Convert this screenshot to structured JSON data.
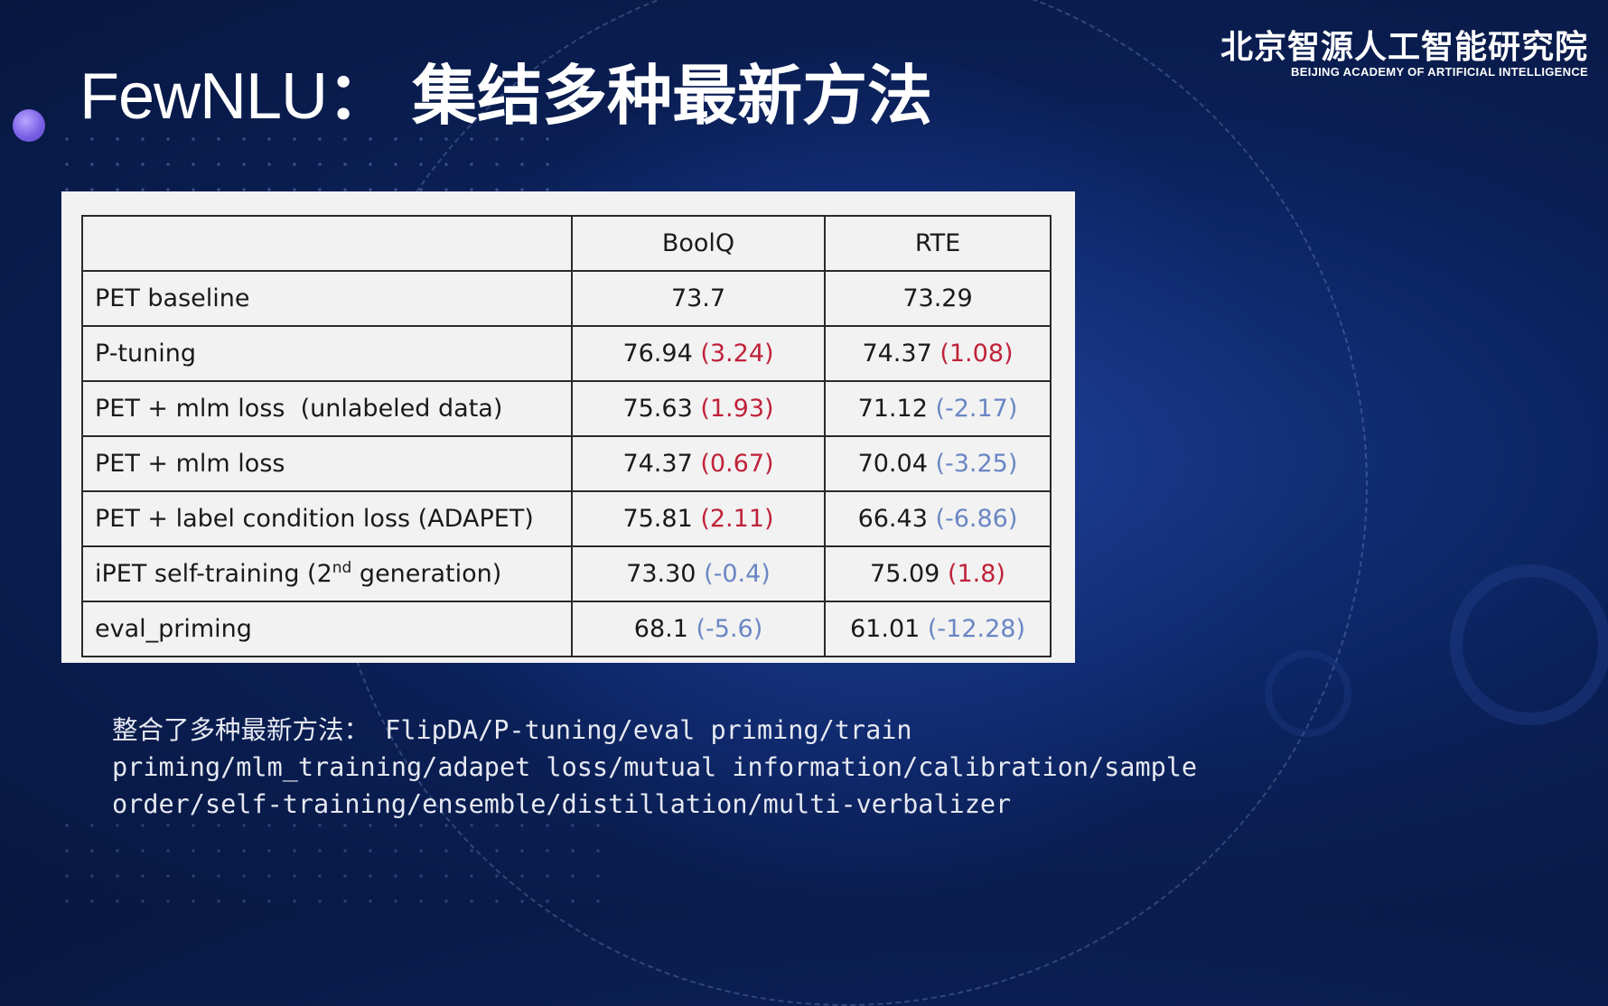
{
  "slide": {
    "title_latin": "FewNLU",
    "title_sep": "：",
    "title_cn": "集结多种最新方法"
  },
  "logo": {
    "cn": "北京智源人工智能研究院",
    "en": "BEIJING ACADEMY OF ARTIFICIAL INTELLIGENCE"
  },
  "table": {
    "headers": [
      "",
      "BoolQ",
      "RTE"
    ],
    "rows": [
      {
        "method": "PET baseline",
        "boolq": "73.7",
        "boolq_delta": "",
        "rte": "73.29",
        "rte_delta": ""
      },
      {
        "method": "P-tuning",
        "boolq": "76.94",
        "boolq_delta": "(3.24)",
        "rte": "74.37",
        "rte_delta": "(1.08)"
      },
      {
        "method": "PET + mlm loss  (unlabeled data)",
        "boolq": "75.63",
        "boolq_delta": "(1.93)",
        "rte": "71.12",
        "rte_delta": "(-2.17)"
      },
      {
        "method": "PET + mlm loss",
        "boolq": "74.37",
        "boolq_delta": "(0.67)",
        "rte": "70.04",
        "rte_delta": "(-3.25)"
      },
      {
        "method": "PET + label condition loss (ADAPET)",
        "boolq": "75.81",
        "boolq_delta": "(2.11)",
        "rte": "66.43",
        "rte_delta": "(-6.86)"
      },
      {
        "method_pre": "iPET self-training (2",
        "method_sup": "nd",
        "method_post": " generation)",
        "boolq": "73.30",
        "boolq_delta": "(-0.4)",
        "rte": "75.09",
        "rte_delta": "(1.8)"
      },
      {
        "method": "eval_priming",
        "boolq": "68.1",
        "boolq_delta": "(-5.6)",
        "rte": "61.01",
        "rte_delta": "(-12.28)"
      }
    ]
  },
  "note": {
    "line1": "整合了多种最新方法： FlipDA/P-tuning/eval priming/train",
    "line2": "priming/mlm_training/adapet loss/mutual information/calibration/sample",
    "line3": "order/self-training/ensemble/distillation/multi-verbalizer"
  },
  "colors": {
    "background": "#0a1f55",
    "positive_delta": "#c0223a",
    "negative_delta": "#6a86c4",
    "panel": "#f2f2f2"
  }
}
